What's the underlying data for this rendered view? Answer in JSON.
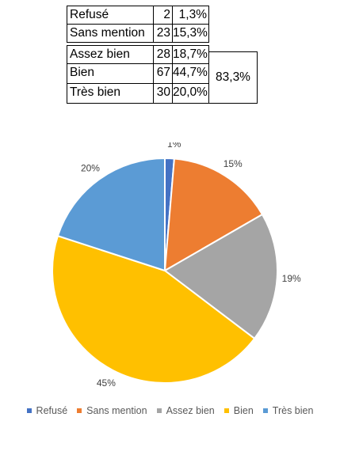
{
  "table": {
    "rows": [
      {
        "label": "Refusé",
        "count": "2",
        "pct": "1,3%"
      },
      {
        "label": "Sans mention",
        "count": "23",
        "pct": "15,3%"
      },
      {
        "label": "Assez bien",
        "count": "28",
        "pct": "18,7%"
      },
      {
        "label": "Bien",
        "count": "67",
        "pct": "44,7%"
      },
      {
        "label": "Très bien",
        "count": "30",
        "pct": "20,0%"
      }
    ],
    "group_total": "83,3%"
  },
  "chart_data": {
    "type": "pie",
    "categories": [
      "Refusé",
      "Sans mention",
      "Assez bien",
      "Bien",
      "Très bien"
    ],
    "values": [
      2,
      23,
      28,
      67,
      30
    ],
    "data_labels": [
      "1%",
      "15%",
      "19%",
      "45%",
      "20%"
    ],
    "colors": [
      "#4472C4",
      "#ED7D31",
      "#A5A5A5",
      "#FFC000",
      "#5B9BD5"
    ],
    "start_angle_deg": 0,
    "direction": "clockwise",
    "legend_position": "bottom"
  }
}
